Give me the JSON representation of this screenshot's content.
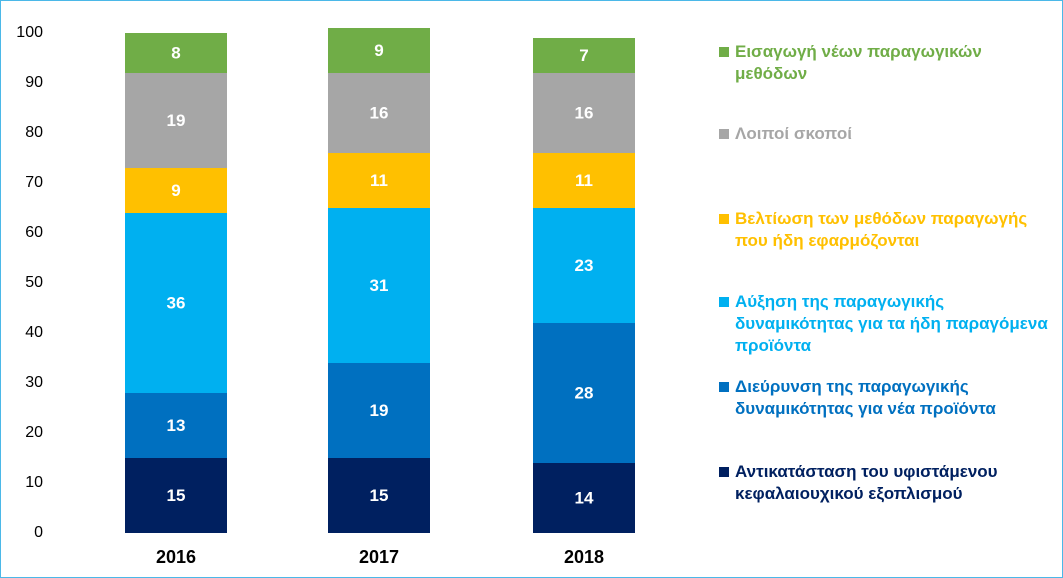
{
  "chart_data": {
    "type": "stacked_bar",
    "categories": [
      "2016",
      "2017",
      "2018"
    ],
    "series": [
      {
        "name": "Αντικατάσταση του υφιστάμενου κεφαλαιουχικού εξοπλισμού",
        "color": "#002060",
        "values": [
          15,
          15,
          14
        ]
      },
      {
        "name": "Διεύρυνση της παραγωγικής δυναμικότητας για νέα προϊόντα",
        "color": "#0070c0",
        "values": [
          13,
          19,
          28
        ]
      },
      {
        "name": "Αύξηση της παραγωγικής δυναμικότητας για τα ήδη παραγόμενα προϊόντα",
        "color": "#00b0f0",
        "values": [
          36,
          31,
          23
        ]
      },
      {
        "name": "Βελτίωση των μεθόδων παραγωγής που ήδη εφαρμόζονται",
        "color": "#ffc000",
        "values": [
          9,
          11,
          11
        ]
      },
      {
        "name": "Λοιποί σκοποί",
        "color": "#a6a6a6",
        "values": [
          19,
          16,
          16
        ]
      },
      {
        "name": "Εισαγωγή νέων παραγωγικών μεθόδων",
        "color": "#70ad47",
        "values": [
          8,
          9,
          7
        ]
      }
    ],
    "ylim": [
      0,
      100
    ],
    "yticks": [
      0,
      10,
      20,
      30,
      40,
      50,
      60,
      70,
      80,
      90,
      100
    ],
    "legend": "right"
  }
}
